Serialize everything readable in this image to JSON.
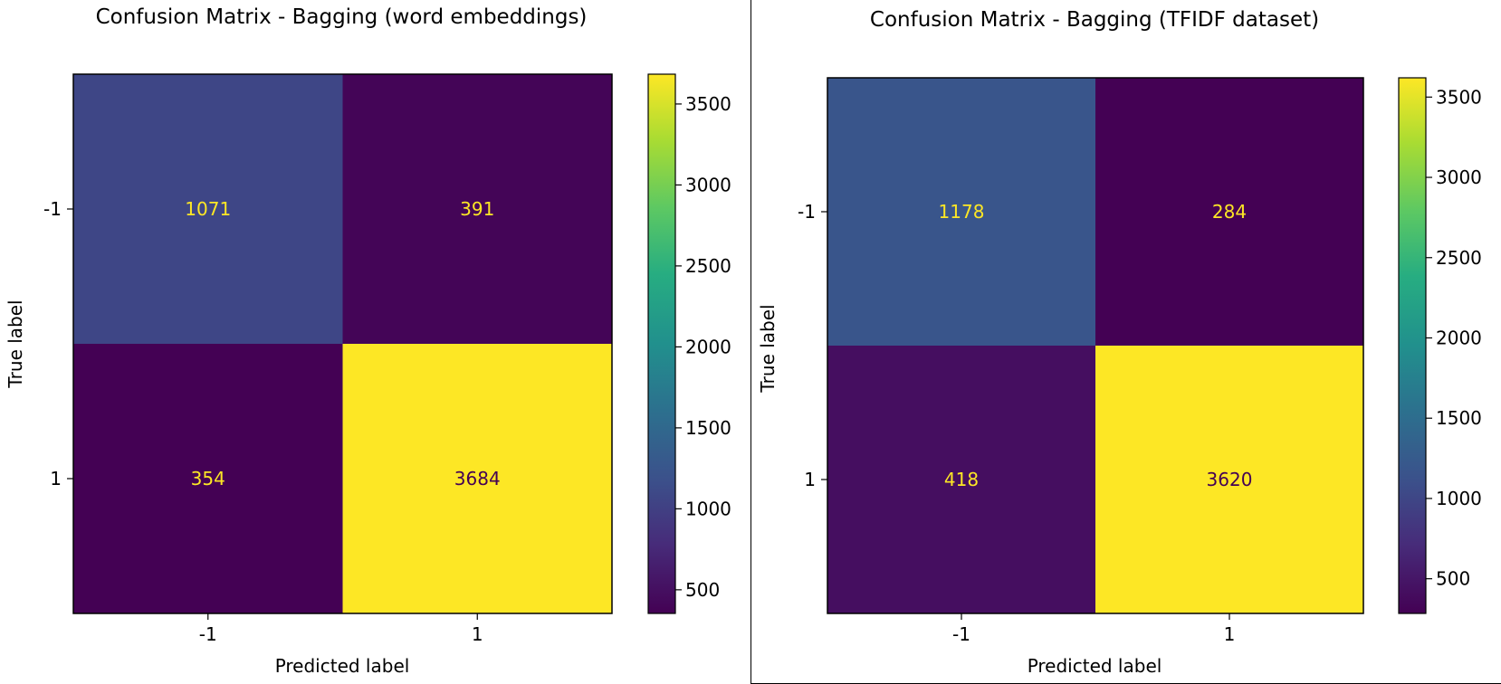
{
  "chart_data": [
    {
      "type": "heatmap",
      "title": "Confusion Matrix - Bagging (word embeddings)",
      "xlabel": "Predicted label",
      "ylabel": "True label",
      "x_categories": [
        "-1",
        "1"
      ],
      "y_categories": [
        "-1",
        "1"
      ],
      "values": [
        [
          1071,
          391
        ],
        [
          354,
          3684
        ]
      ],
      "colormap": "viridis",
      "colorbar": {
        "range": [
          354,
          3684
        ],
        "ticks": [
          500,
          1000,
          1500,
          2000,
          2500,
          3000,
          3500
        ]
      }
    },
    {
      "type": "heatmap",
      "title": "Confusion Matrix - Bagging (TFIDF dataset)",
      "xlabel": "Predicted label",
      "ylabel": "True label",
      "x_categories": [
        "-1",
        "1"
      ],
      "y_categories": [
        "-1",
        "1"
      ],
      "values": [
        [
          1178,
          284
        ],
        [
          418,
          3620
        ]
      ],
      "colormap": "viridis",
      "colorbar": {
        "range": [
          284,
          3620
        ],
        "ticks": [
          500,
          1000,
          1500,
          2000,
          2500,
          3000,
          3500
        ]
      }
    }
  ]
}
